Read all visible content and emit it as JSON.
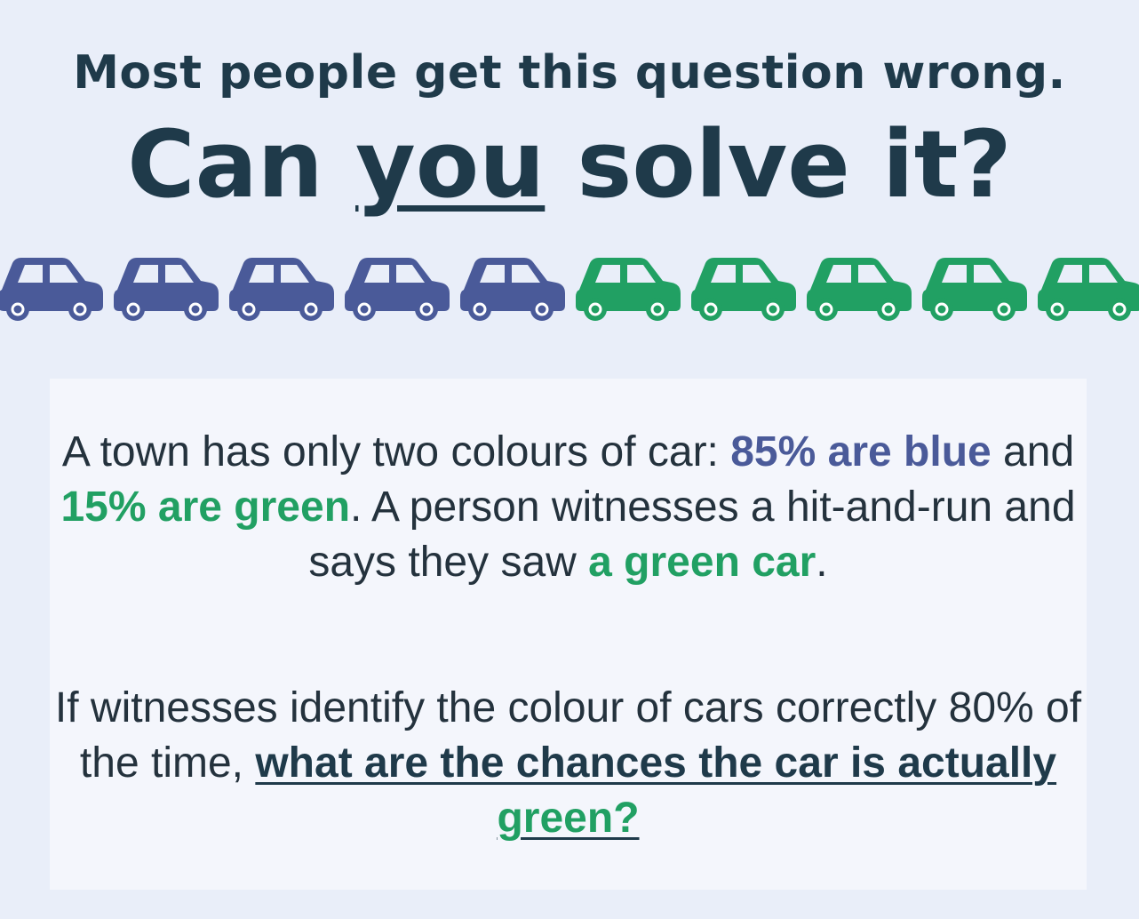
{
  "subtitle": "Most people get this question wrong.",
  "title": {
    "before": "Can ",
    "emph": "you",
    "after": " solve it?"
  },
  "cars": {
    "blue_count": 5,
    "green_count": 5,
    "blue_color": "#4a5a99",
    "green_color": "#21a063",
    "icon": "car-icon"
  },
  "paragraph1": {
    "t1": "A town has only two colours of car: ",
    "blue": "85% are blue",
    "t2": " and ",
    "green": "15% are green",
    "t3": ". A person witnesses a hit-and-run and says they saw ",
    "green2": "a green car",
    "t4": "."
  },
  "paragraph2": {
    "t1": "If witnesses identify the colour of cars correctly 80% of the time, ",
    "question": "what are the chances the car is actually ",
    "question_green": "green?"
  }
}
